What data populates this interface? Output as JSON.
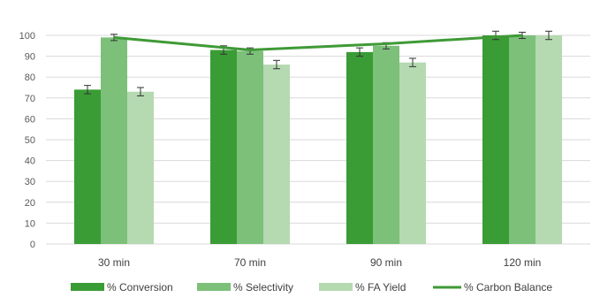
{
  "chart_data": {
    "type": "bar",
    "title": "",
    "xlabel": "",
    "ylabel": "",
    "categories": [
      "30 min",
      "70 min",
      "90 min",
      "120 min"
    ],
    "ylim": [
      0,
      100
    ],
    "yticks": [
      0,
      10,
      20,
      30,
      40,
      50,
      60,
      70,
      80,
      90,
      100
    ],
    "grid": true,
    "legend": "bottom",
    "series": [
      {
        "name": "% Conversion",
        "type": "bar",
        "color": "#3a9c35",
        "values": [
          74,
          93,
          92,
          100
        ],
        "errors": [
          2,
          2,
          2,
          2
        ]
      },
      {
        "name": "% Selectivity",
        "type": "bar",
        "color": "#7cc07a",
        "values": [
          99,
          92.5,
          95,
          100
        ],
        "errors": [
          1.5,
          1.5,
          1.5,
          1.5
        ]
      },
      {
        "name": "% FA Yield",
        "type": "bar",
        "color": "#b5d9b1",
        "values": [
          73,
          86,
          87,
          100
        ],
        "errors": [
          2,
          2,
          2,
          2
        ]
      },
      {
        "name": "% Carbon Balance",
        "type": "line",
        "color": "#3f9a36",
        "values": [
          99,
          93,
          96,
          100
        ]
      }
    ]
  }
}
